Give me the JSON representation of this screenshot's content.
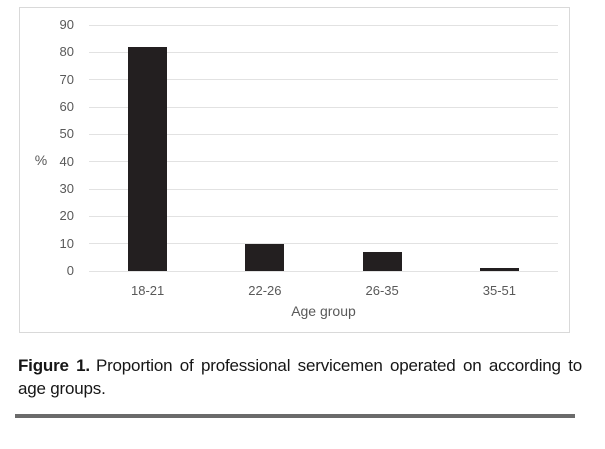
{
  "chart_data": {
    "type": "bar",
    "categories": [
      "18-21",
      "22-26",
      "26-35",
      "35-51"
    ],
    "values": [
      82,
      10,
      7,
      1
    ],
    "title": "",
    "xlabel": "Age group",
    "ylabel": "%",
    "ylim": [
      0,
      90
    ],
    "yticks": [
      0,
      10,
      20,
      30,
      40,
      50,
      60,
      70,
      80,
      90
    ],
    "grid": true,
    "legend": "none",
    "bar_color": "#231f20",
    "gridline_color": "#e2e2e2",
    "axis_label_color": "#595959",
    "frame_border_color": "#d9d9d9",
    "divider_color": "#6b6b6b"
  },
  "caption": {
    "label": "Figure 1.",
    "text": "Proportion of professional servicemen operated on according to age groups."
  }
}
